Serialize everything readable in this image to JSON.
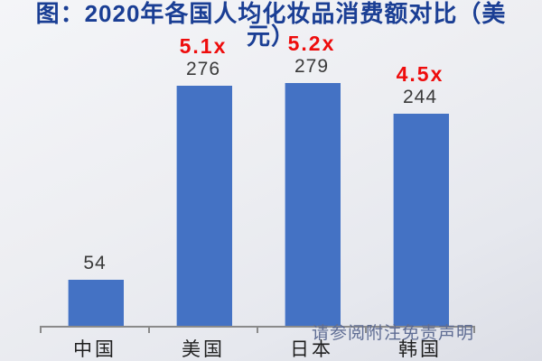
{
  "header": {
    "title_line1": "图：2020年各国人均化妆品消费额对比（美",
    "title_line2": "元）",
    "title_color": "#1a3e94"
  },
  "chart_data": {
    "type": "bar",
    "title": "图：2020年各国人均化妆品消费额对比（美元）",
    "unit": "美元",
    "categories": [
      "中国",
      "美国",
      "日本",
      "韩国"
    ],
    "values": [
      54,
      276,
      279,
      244
    ],
    "multiplier_labels": [
      "",
      "5.1x",
      "5.2x",
      "4.5x"
    ],
    "ylim": [
      0,
      290
    ],
    "grid": false,
    "legend": false,
    "bar_color": "#4472c4",
    "multiplier_color": "#ee0c0c",
    "value_label_color": "#3a3a3a",
    "axis_color": "#8a8a8a"
  },
  "footer": {
    "disclaimer": "请参阅附注免责声明"
  }
}
